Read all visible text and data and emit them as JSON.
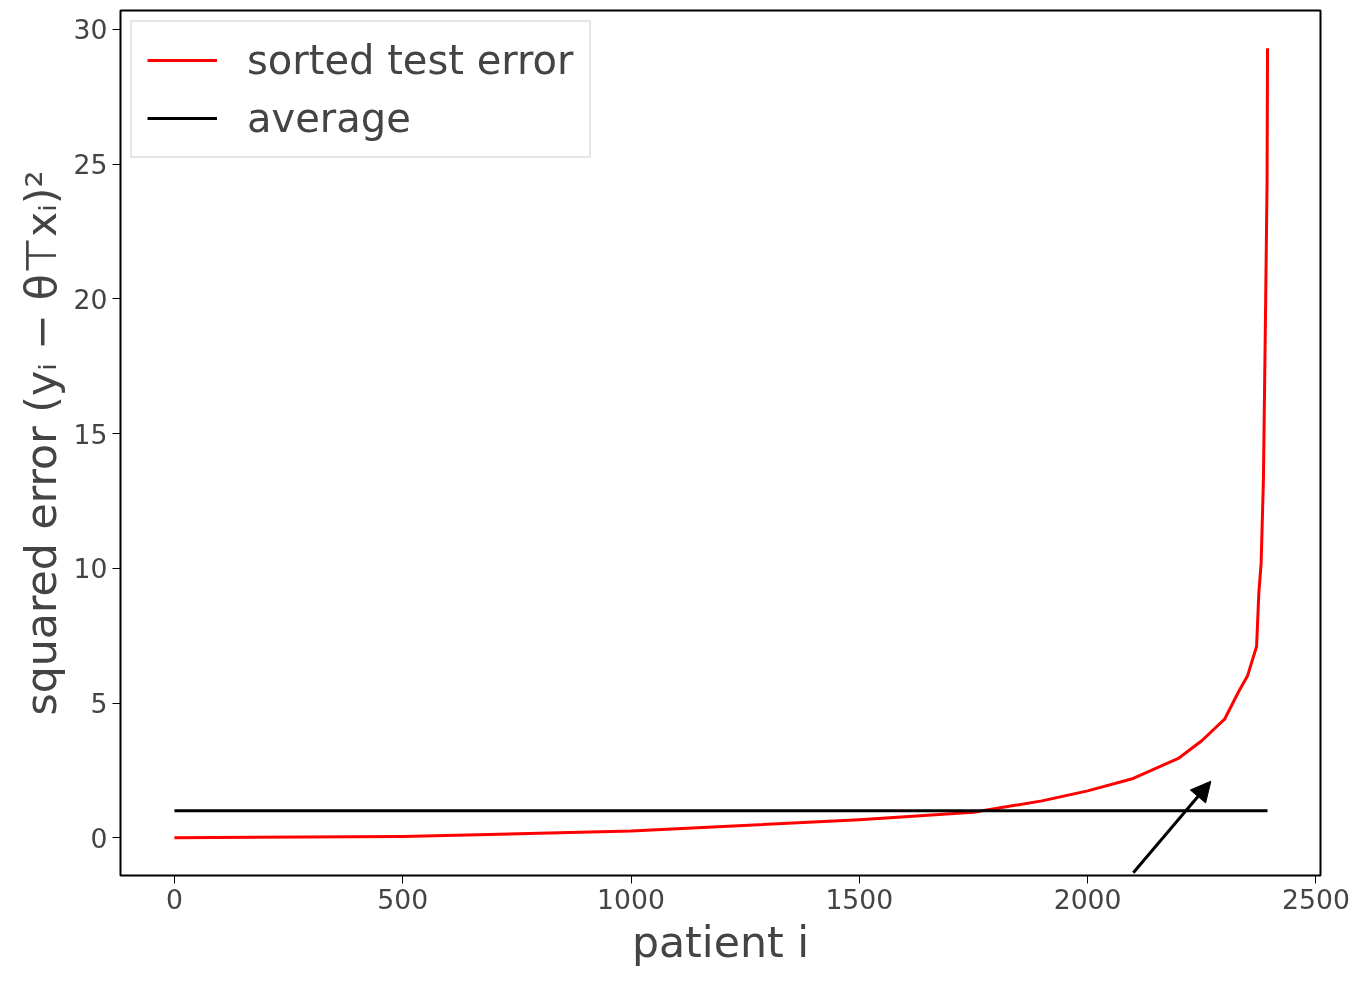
{
  "chart_data": {
    "type": "line",
    "xlabel": "patient i",
    "ylabel": "squared error (yᵢ − θ⊤xᵢ)²",
    "xlim": [
      -118,
      2510
    ],
    "ylim": [
      -1.4,
      30.7
    ],
    "xticks": [
      0,
      500,
      1000,
      1500,
      2000,
      2500
    ],
    "yticks": [
      0,
      5,
      10,
      15,
      20,
      25,
      30
    ],
    "grid": false,
    "legend": "top left",
    "line_style": "solid",
    "marker": "none",
    "series": [
      {
        "name": "sorted test error",
        "color": "#ff0000",
        "x": [
          0,
          500,
          1000,
          1500,
          1750,
          1900,
          2000,
          2100,
          2200,
          2250,
          2300,
          2330,
          2350,
          2370,
          2375,
          2380,
          2385,
          2390,
          2393,
          2394
        ],
        "values": [
          0,
          0.05,
          0.25,
          0.67,
          0.95,
          1.37,
          1.74,
          2.2,
          2.96,
          3.6,
          4.4,
          5.4,
          6.0,
          7.1,
          9.1,
          10.2,
          13.3,
          20,
          24.4,
          29.3
        ]
      },
      {
        "name": "average",
        "color": "#000000",
        "x": [
          0,
          2394
        ],
        "values": [
          1,
          1
        ]
      }
    ]
  }
}
